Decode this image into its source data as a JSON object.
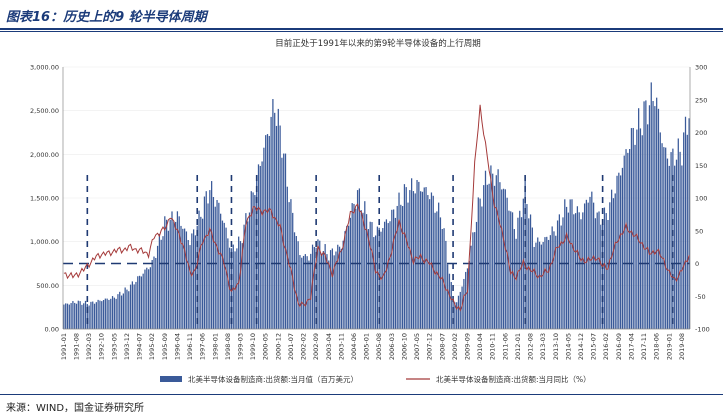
{
  "header": {
    "title": "图表16：历史上的9 轮半导体周期"
  },
  "footer": {
    "source": "来源：WIND，国金证券研究所"
  },
  "chart_data": {
    "type": "bar+line",
    "title": "目前正处于1991年以来的第9轮半导体设备的上行周期",
    "left_axis": {
      "ylim": [
        0,
        3000
      ],
      "ticks": [
        "0.00",
        "500.00",
        "1,000.00",
        "1,500.00",
        "2,000.00",
        "2,500.00",
        "3,000.00"
      ]
    },
    "right_axis": {
      "ylim": [
        -100,
        300
      ],
      "ticks": [
        "-100",
        "-50",
        "0",
        "50",
        "100",
        "150",
        "200",
        "250",
        "300"
      ]
    },
    "x_tick_labels": [
      "1991-01",
      "1991-08",
      "1992-03",
      "1992-10",
      "1993-05",
      "1993-12",
      "1994-07",
      "1995-02",
      "1995-09",
      "1996-04",
      "1996-11",
      "1997-06",
      "1998-01",
      "1998-08",
      "1999-03",
      "1999-10",
      "2000-05",
      "2000-12",
      "2001-07",
      "2002-02",
      "2002-09",
      "2003-04",
      "2003-11",
      "2004-06",
      "2005-01",
      "2005-08",
      "2006-03",
      "2006-10",
      "2007-05",
      "2007-12",
      "2008-07",
      "2009-02",
      "2009-09",
      "2010-04",
      "2010-11",
      "2011-06",
      "2012-01",
      "2012-08",
      "2013-03",
      "2013-10",
      "2014-05",
      "2014-12",
      "2015-07",
      "2016-02",
      "2016-09",
      "2017-04",
      "2017-11",
      "2018-06",
      "2019-01",
      "2019-08"
    ],
    "bar_series": {
      "name": "北美半导体设备制造商:出货额:当月值（百万美元）",
      "color": "#3a5a99",
      "anchors": [
        [
          "1991-01",
          280
        ],
        [
          "1991-08",
          310
        ],
        [
          "1992-03",
          290
        ],
        [
          "1992-10",
          330
        ],
        [
          "1993-05",
          360
        ],
        [
          "1993-12",
          450
        ],
        [
          "1994-07",
          600
        ],
        [
          "1995-02",
          750
        ],
        [
          "1995-09",
          1200
        ],
        [
          "1996-04",
          1300
        ],
        [
          "1996-11",
          1000
        ],
        [
          "1997-04",
          1250
        ],
        [
          "1997-10",
          1620
        ],
        [
          "1998-04",
          1350
        ],
        [
          "1998-10",
          900
        ],
        [
          "1999-03",
          1000
        ],
        [
          "1999-10",
          1550
        ],
        [
          "2000-05",
          2150
        ],
        [
          "2000-10",
          2570
        ],
        [
          "2001-02",
          2150
        ],
        [
          "2001-07",
          1400
        ],
        [
          "2001-12",
          850
        ],
        [
          "2002-05",
          820
        ],
        [
          "2002-09",
          1000
        ],
        [
          "2003-04",
          850
        ],
        [
          "2003-11",
          950
        ],
        [
          "2004-04",
          1300
        ],
        [
          "2004-08",
          1550
        ],
        [
          "2005-01",
          1300
        ],
        [
          "2005-05",
          1100
        ],
        [
          "2005-09",
          1150
        ],
        [
          "2006-03",
          1300
        ],
        [
          "2006-10",
          1550
        ],
        [
          "2007-05",
          1650
        ],
        [
          "2007-12",
          1550
        ],
        [
          "2008-07",
          1250
        ],
        [
          "2009-01",
          350
        ],
        [
          "2009-03",
          300
        ],
        [
          "2009-09",
          700
        ],
        [
          "2010-03",
          1400
        ],
        [
          "2010-08",
          1750
        ],
        [
          "2011-02",
          1750
        ],
        [
          "2011-07",
          1500
        ],
        [
          "2011-12",
          1100
        ],
        [
          "2012-05",
          1600
        ],
        [
          "2012-10",
          1000
        ],
        [
          "2013-03",
          1000
        ],
        [
          "2013-10",
          1150
        ],
        [
          "2014-05",
          1450
        ],
        [
          "2014-12",
          1300
        ],
        [
          "2015-05",
          1550
        ],
        [
          "2015-10",
          1250
        ],
        [
          "2016-02",
          1300
        ],
        [
          "2016-09",
          1750
        ],
        [
          "2017-04",
          2200
        ],
        [
          "2017-10",
          2400
        ],
        [
          "2018-01",
          2550
        ],
        [
          "2018-05",
          2700
        ],
        [
          "2018-10",
          2050
        ],
        [
          "2019-01",
          1950
        ],
        [
          "2019-05",
          2000
        ],
        [
          "2019-08",
          2050
        ],
        [
          "2019-12",
          2500
        ]
      ]
    },
    "line_series": {
      "name": "北美半导体设备制造商:出货额:当月同比（%）",
      "color": "#a53a3a",
      "anchors": [
        [
          "1991-01",
          -15
        ],
        [
          "1991-06",
          -20
        ],
        [
          "1991-12",
          -10
        ],
        [
          "1992-03",
          0
        ],
        [
          "1992-07",
          10
        ],
        [
          "1992-10",
          15
        ],
        [
          "1993-02",
          15
        ],
        [
          "1993-05",
          20
        ],
        [
          "1993-09",
          20
        ],
        [
          "1994-01",
          25
        ],
        [
          "1994-07",
          20
        ],
        [
          "1994-12",
          15
        ],
        [
          "1995-03",
          40
        ],
        [
          "1995-07",
          50
        ],
        [
          "1995-10",
          55
        ],
        [
          "1995-12",
          75
        ],
        [
          "1996-03",
          55
        ],
        [
          "1996-07",
          30
        ],
        [
          "1996-11",
          -15
        ],
        [
          "1997-02",
          -10
        ],
        [
          "1997-06",
          35
        ],
        [
          "1997-10",
          50
        ],
        [
          "1998-02",
          25
        ],
        [
          "1998-06",
          0
        ],
        [
          "1998-10",
          -45
        ],
        [
          "1999-02",
          -30
        ],
        [
          "1999-06",
          60
        ],
        [
          "1999-10",
          85
        ],
        [
          "2000-03",
          80
        ],
        [
          "2000-08",
          80
        ],
        [
          "2001-01",
          55
        ],
        [
          "2001-06",
          0
        ],
        [
          "2001-11",
          -60
        ],
        [
          "2002-02",
          -65
        ],
        [
          "2002-06",
          -50
        ],
        [
          "2002-10",
          25
        ],
        [
          "2003-02",
          10
        ],
        [
          "2003-06",
          -15
        ],
        [
          "2003-11",
          20
        ],
        [
          "2004-04",
          75
        ],
        [
          "2004-08",
          90
        ],
        [
          "2005-01",
          50
        ],
        [
          "2005-06",
          -10
        ],
        [
          "2005-10",
          -25
        ],
        [
          "2006-03",
          20
        ],
        [
          "2006-07",
          65
        ],
        [
          "2006-11",
          35
        ],
        [
          "2007-03",
          5
        ],
        [
          "2007-07",
          10
        ],
        [
          "2007-12",
          0
        ],
        [
          "2008-04",
          -15
        ],
        [
          "2008-08",
          -30
        ],
        [
          "2009-01",
          -60
        ],
        [
          "2009-05",
          -70
        ],
        [
          "2009-09",
          -40
        ],
        [
          "2010-01",
          150
        ],
        [
          "2010-04",
          240
        ],
        [
          "2010-07",
          180
        ],
        [
          "2010-12",
          90
        ],
        [
          "2011-05",
          40
        ],
        [
          "2011-09",
          -15
        ],
        [
          "2011-12",
          -20
        ],
        [
          "2012-04",
          0
        ],
        [
          "2012-08",
          -10
        ],
        [
          "2013-01",
          -20
        ],
        [
          "2013-06",
          -10
        ],
        [
          "2013-11",
          25
        ],
        [
          "2014-04",
          40
        ],
        [
          "2014-09",
          20
        ],
        [
          "2014-12",
          5
        ],
        [
          "2015-05",
          5
        ],
        [
          "2015-09",
          10
        ],
        [
          "2015-12",
          -5
        ],
        [
          "2016-03",
          -5
        ],
        [
          "2016-08",
          35
        ],
        [
          "2017-01",
          55
        ],
        [
          "2017-05",
          45
        ],
        [
          "2017-10",
          30
        ],
        [
          "2018-02",
          15
        ],
        [
          "2018-06",
          20
        ],
        [
          "2018-10",
          5
        ],
        [
          "2019-01",
          -15
        ],
        [
          "2019-04",
          -25
        ],
        [
          "2019-07",
          -15
        ],
        [
          "2019-10",
          0
        ],
        [
          "2019-12",
          15
        ]
      ]
    },
    "cycle_markers": [
      "1992-02",
      "1997-03",
      "1998-10",
      "1999-12",
      "2002-09",
      "2005-08",
      "2009-01",
      "2012-05",
      "2015-12",
      "2019-03"
    ],
    "zero_line_label": "0",
    "legend_position": "bottom"
  }
}
